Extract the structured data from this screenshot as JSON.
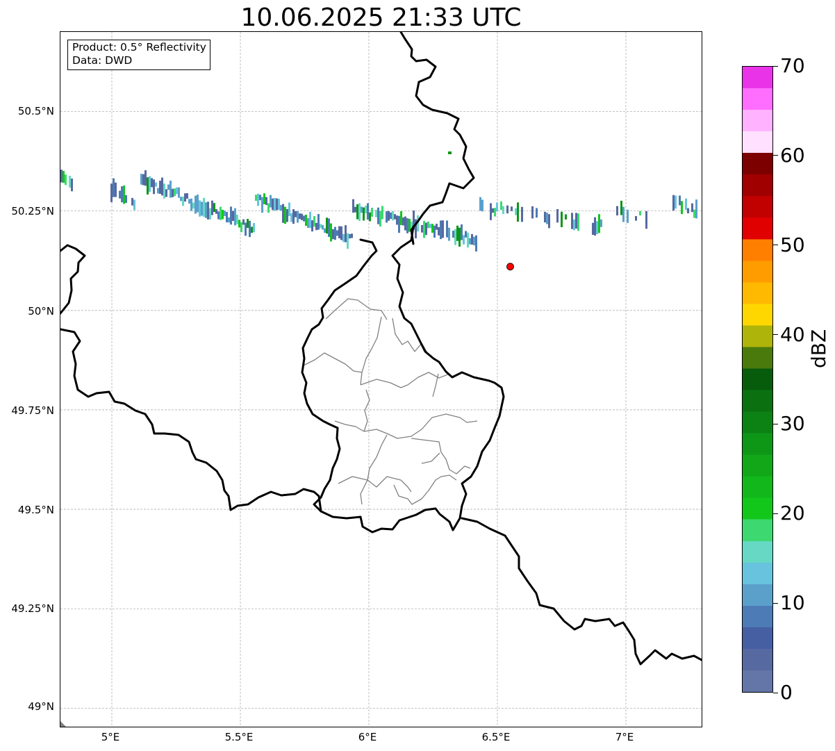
{
  "title": "10.06.2025 21:33 UTC",
  "info": {
    "product": "Product: 0.5° Reflectivity",
    "source": "Data: DWD"
  },
  "map": {
    "lat_labels": [
      "50.5°N",
      "50.25°N",
      "50°N",
      "49.75°N",
      "49.5°N",
      "49.25°N",
      "49°N"
    ],
    "lon_labels": [
      "5°E",
      "5.5°E",
      "6°E",
      "6.5°E",
      "7°E"
    ],
    "lat_values": [
      50.5,
      50.25,
      50.0,
      49.75,
      49.5,
      49.25,
      49.0
    ],
    "lon_values": [
      5.0,
      5.5,
      6.0,
      6.5,
      7.0
    ],
    "extent": {
      "lon_min": 4.8,
      "lon_max": 7.3,
      "lat_min": 48.95,
      "lat_max": 50.7
    },
    "marker": {
      "lat": 50.11,
      "lon": 6.55,
      "color": "#ff0000"
    },
    "colors": {
      "country_border": "#000000",
      "canton_border": "#808080",
      "grid": "#b0b0b0"
    }
  },
  "colorbar": {
    "unit": "dBZ",
    "tick_labels": [
      "0",
      "10",
      "20",
      "30",
      "40",
      "50",
      "60",
      "70"
    ],
    "tick_values": [
      0,
      10,
      20,
      30,
      40,
      50,
      60,
      70
    ],
    "range": [
      0,
      70
    ],
    "bin_width": 2.5,
    "colors": [
      "#6475a7",
      "#5669a0",
      "#465fa3",
      "#4d7bb5",
      "#5aa0cb",
      "#67c3de",
      "#66d8c4",
      "#3dd870",
      "#13c61a",
      "#12b81b",
      "#11a718",
      "#0e9617",
      "#0c8114",
      "#0b7110",
      "#075c0c",
      "#4a7a0c",
      "#afb40a",
      "#ffd700",
      "#ffb900",
      "#ff9c00",
      "#ff7f00",
      "#e00000",
      "#c10000",
      "#a00000",
      "#7d0000",
      "#ffe0ff",
      "#ffb2ff",
      "#ff6eff",
      "#e933e9"
    ]
  }
}
